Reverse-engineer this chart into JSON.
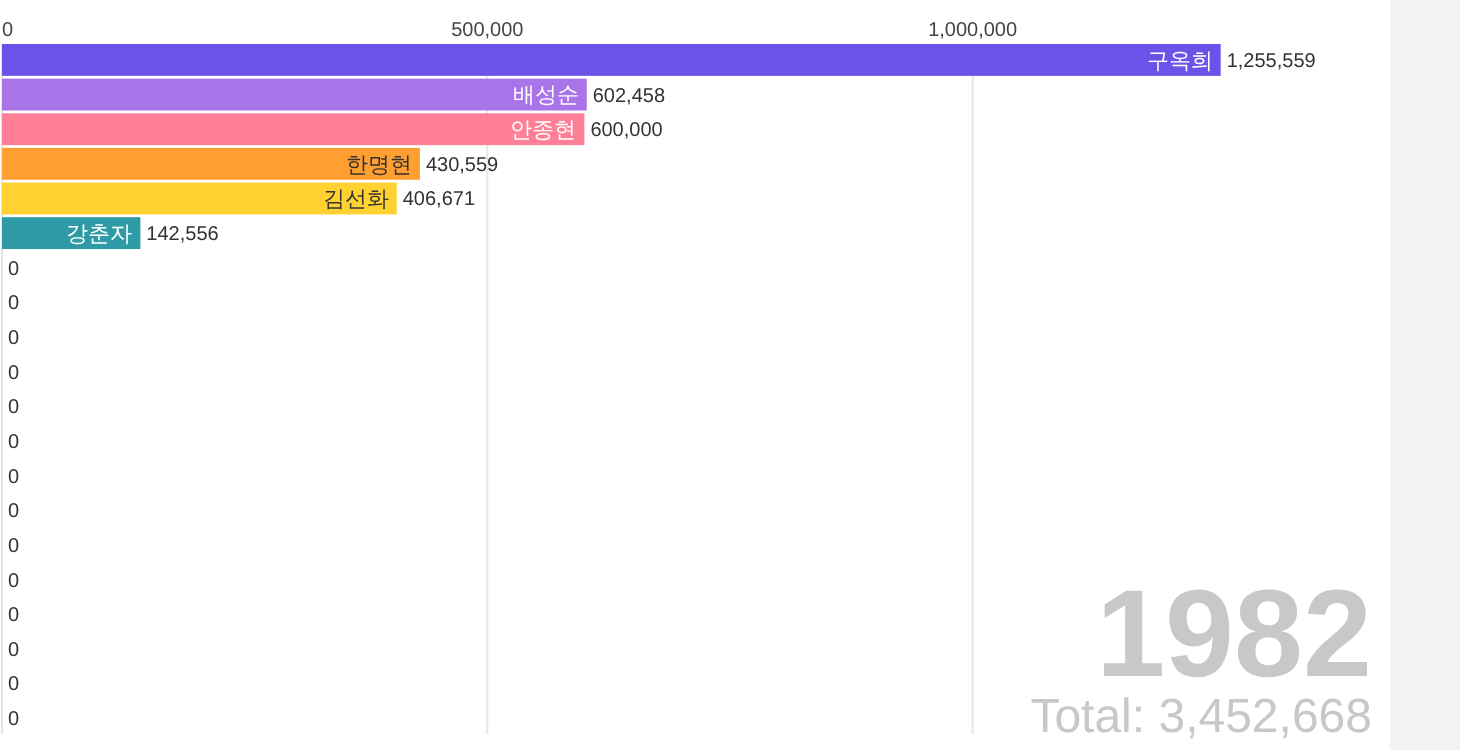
{
  "chart_data": {
    "type": "bar",
    "orientation": "horizontal",
    "categories": [
      "구옥희",
      "배성순",
      "안종현",
      "한명현",
      "김선화",
      "강춘자",
      null,
      null,
      null,
      null,
      null,
      null,
      null,
      null,
      null,
      null,
      null,
      null,
      null,
      null
    ],
    "values": [
      1255559,
      602458,
      600000,
      430559,
      406671,
      142556,
      0,
      0,
      0,
      0,
      0,
      0,
      0,
      0,
      0,
      0,
      0,
      0,
      0,
      0
    ],
    "colors": [
      "#6b52e8",
      "#a874e8",
      "#ff7f96",
      "#ff9f32",
      "#ffd232",
      "#2e9aa6",
      "#cccccc",
      "#cccccc",
      "#cccccc",
      "#cccccc",
      "#cccccc",
      "#cccccc",
      "#cccccc",
      "#cccccc",
      "#cccccc",
      "#cccccc",
      "#cccccc",
      "#cccccc",
      "#cccccc",
      "#cccccc"
    ],
    "xlim": [
      0,
      1430000
    ],
    "xticks": [
      {
        "value": 0,
        "label": "0"
      },
      {
        "value": 500000,
        "label": "500,000"
      },
      {
        "value": 1000000,
        "label": "1,000,000"
      }
    ],
    "value_labels": [
      "1,255,559",
      "602,458",
      "600,000",
      "430,559",
      "406,671",
      "142,556",
      "0",
      "0",
      "0",
      "0",
      "0",
      "0",
      "0",
      "0",
      "0",
      "0",
      "0",
      "0",
      "0",
      "0"
    ],
    "grid": "x",
    "annotations": [
      "1982",
      "Total: 3,452,668"
    ]
  }
}
